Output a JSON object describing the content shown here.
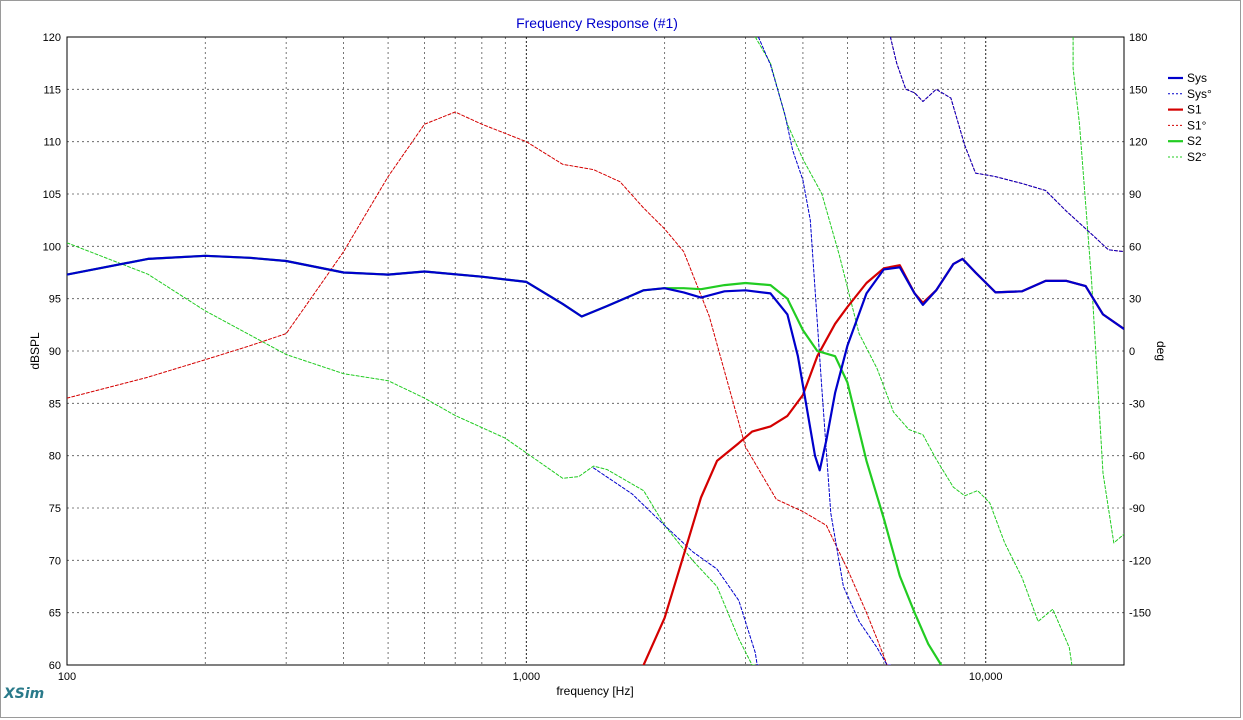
{
  "app_brand": "XSim",
  "chart_data": {
    "type": "line",
    "title": "Frequency Response (#1)",
    "xlabel": "frequency [Hz]",
    "ylabel_left": "dBSPL",
    "ylabel_right": "deg",
    "x_scale": "log",
    "xlim": [
      100,
      20000
    ],
    "ylim_left": [
      60,
      120
    ],
    "ylim_right": [
      -180,
      180
    ],
    "x_tick_labels": [
      {
        "value": 100,
        "label": "100"
      },
      {
        "value": 1000,
        "label": "1,000"
      },
      {
        "value": 10000,
        "label": "10,000"
      }
    ],
    "y_ticks_left": [
      60,
      65,
      70,
      75,
      80,
      85,
      90,
      95,
      100,
      105,
      110,
      115,
      120
    ],
    "y_ticks_right": [
      -150,
      -120,
      -90,
      -60,
      -30,
      0,
      30,
      60,
      90,
      120,
      150,
      180
    ],
    "y_tick_labels_right": [
      "-150",
      "-120",
      "-90",
      "-60",
      "-30",
      "0",
      "30",
      "60",
      "90",
      "120",
      "150",
      "180"
    ],
    "grid": true,
    "legend_position": "top-right",
    "colors": {
      "title": "#0000cc",
      "Sys": "#0000cc",
      "S1": "#d40000",
      "S2": "#22cc22",
      "grid": "#555555"
    },
    "series": [
      {
        "name": "Sys",
        "axis": "left",
        "style": "solid",
        "color": "#0000cc",
        "points": [
          [
            100,
            97.3
          ],
          [
            150,
            98.8
          ],
          [
            200,
            99.1
          ],
          [
            250,
            98.9
          ],
          [
            300,
            98.6
          ],
          [
            400,
            97.5
          ],
          [
            500,
            97.3
          ],
          [
            600,
            97.6
          ],
          [
            800,
            97.1
          ],
          [
            1000,
            96.6
          ],
          [
            1200,
            94.5
          ],
          [
            1320,
            93.3
          ],
          [
            1500,
            94.3
          ],
          [
            1800,
            95.8
          ],
          [
            2000,
            96.0
          ],
          [
            2200,
            95.6
          ],
          [
            2400,
            95.1
          ],
          [
            2700,
            95.7
          ],
          [
            3000,
            95.8
          ],
          [
            3400,
            95.5
          ],
          [
            3700,
            93.5
          ],
          [
            3900,
            89.5
          ],
          [
            4100,
            84.0
          ],
          [
            4250,
            80.0
          ],
          [
            4350,
            78.6
          ],
          [
            4500,
            81.5
          ],
          [
            4700,
            86.0
          ],
          [
            5000,
            90.5
          ],
          [
            5500,
            95.5
          ],
          [
            6000,
            97.8
          ],
          [
            6500,
            98.0
          ],
          [
            7000,
            95.5
          ],
          [
            7300,
            94.4
          ],
          [
            7800,
            95.8
          ],
          [
            8500,
            98.3
          ],
          [
            8900,
            98.8
          ],
          [
            9500,
            97.5
          ],
          [
            10500,
            95.6
          ],
          [
            12000,
            95.7
          ],
          [
            13500,
            96.7
          ],
          [
            15000,
            96.7
          ],
          [
            16500,
            96.2
          ],
          [
            18000,
            93.5
          ],
          [
            20000,
            92.1
          ]
        ]
      },
      {
        "name": "Sys°",
        "axis": "right",
        "style": "dashed",
        "color": "#0000cc",
        "points": [
          [
            1400,
            -67
          ],
          [
            1700,
            -82
          ],
          [
            2000,
            -100
          ],
          [
            2300,
            -115
          ],
          [
            2600,
            -125
          ],
          [
            2900,
            -143
          ],
          [
            3150,
            -173
          ],
          [
            3180,
            -180
          ],
          [
            3200,
            180
          ],
          [
            3400,
            164
          ],
          [
            3650,
            136
          ],
          [
            3800,
            115
          ],
          [
            4000,
            98
          ],
          [
            4150,
            75
          ],
          [
            4400,
            -22
          ],
          [
            4600,
            -93
          ],
          [
            4900,
            -135
          ],
          [
            5300,
            -155
          ],
          [
            5800,
            -170
          ],
          [
            6100,
            -180
          ],
          [
            6200,
            180
          ],
          [
            6400,
            165
          ],
          [
            6700,
            150
          ],
          [
            7000,
            148
          ],
          [
            7300,
            143
          ],
          [
            7800,
            150
          ],
          [
            8400,
            145
          ],
          [
            9000,
            118
          ],
          [
            9500,
            102
          ],
          [
            10500,
            100
          ],
          [
            12000,
            96
          ],
          [
            13500,
            92
          ],
          [
            15000,
            80
          ],
          [
            17000,
            67
          ],
          [
            18500,
            58
          ],
          [
            20000,
            57
          ]
        ]
      },
      {
        "name": "S1",
        "axis": "left",
        "style": "solid",
        "color": "#d40000",
        "points": [
          [
            1800,
            60
          ],
          [
            2000,
            64.5
          ],
          [
            2200,
            70.5
          ],
          [
            2400,
            76
          ],
          [
            2600,
            79.5
          ],
          [
            2900,
            81.2
          ],
          [
            3100,
            82.3
          ],
          [
            3400,
            82.8
          ],
          [
            3700,
            83.8
          ],
          [
            4000,
            85.8
          ],
          [
            4300,
            89.5
          ],
          [
            4700,
            92.6
          ],
          [
            5000,
            94.2
          ],
          [
            5500,
            96.5
          ],
          [
            6000,
            97.9
          ],
          [
            6500,
            98.2
          ],
          [
            7000,
            95.5
          ],
          [
            7300,
            94.6
          ],
          [
            7800,
            95.8
          ],
          [
            8500,
            98.3
          ],
          [
            8900,
            98.8
          ],
          [
            9500,
            97.5
          ],
          [
            10500,
            95.6
          ],
          [
            12000,
            95.7
          ],
          [
            13500,
            96.7
          ],
          [
            15000,
            96.7
          ],
          [
            16500,
            96.2
          ],
          [
            18000,
            93.5
          ],
          [
            20000,
            92.1
          ]
        ]
      },
      {
        "name": "S1°",
        "axis": "right",
        "style": "dashed",
        "color": "#d40000",
        "points": [
          [
            100,
            -27
          ],
          [
            150,
            -15
          ],
          [
            200,
            -5
          ],
          [
            250,
            3
          ],
          [
            300,
            10
          ],
          [
            350,
            35
          ],
          [
            400,
            57
          ],
          [
            500,
            100
          ],
          [
            600,
            130
          ],
          [
            700,
            137
          ],
          [
            800,
            130
          ],
          [
            1000,
            120
          ],
          [
            1200,
            107
          ],
          [
            1400,
            104
          ],
          [
            1600,
            97
          ],
          [
            1800,
            82
          ],
          [
            2000,
            70
          ],
          [
            2200,
            57
          ],
          [
            2500,
            20
          ],
          [
            3000,
            -55
          ],
          [
            3500,
            -85
          ],
          [
            4000,
            -92
          ],
          [
            4500,
            -100
          ],
          [
            5000,
            -125
          ],
          [
            5500,
            -150
          ],
          [
            5800,
            -165
          ],
          [
            6000,
            -175
          ],
          [
            6100,
            -180
          ],
          [
            6200,
            180
          ],
          [
            6400,
            165
          ],
          [
            6700,
            150
          ],
          [
            7000,
            148
          ],
          [
            7300,
            143
          ],
          [
            7800,
            150
          ],
          [
            8400,
            145
          ],
          [
            9000,
            118
          ],
          [
            9500,
            102
          ],
          [
            10500,
            100
          ],
          [
            12000,
            96
          ],
          [
            13500,
            92
          ],
          [
            15000,
            80
          ],
          [
            17000,
            67
          ],
          [
            18500,
            58
          ],
          [
            20000,
            57
          ]
        ]
      },
      {
        "name": "S2",
        "axis": "left",
        "style": "solid",
        "color": "#22cc22",
        "points": [
          [
            100,
            97.3
          ],
          [
            150,
            98.8
          ],
          [
            200,
            99.1
          ],
          [
            250,
            98.9
          ],
          [
            300,
            98.6
          ],
          [
            400,
            97.5
          ],
          [
            500,
            97.3
          ],
          [
            600,
            97.6
          ],
          [
            800,
            97.1
          ],
          [
            1000,
            96.6
          ],
          [
            1200,
            94.5
          ],
          [
            1320,
            93.3
          ],
          [
            1500,
            94.3
          ],
          [
            1800,
            95.8
          ],
          [
            2000,
            96.0
          ],
          [
            2200,
            96.0
          ],
          [
            2400,
            95.9
          ],
          [
            2700,
            96.3
          ],
          [
            3000,
            96.5
          ],
          [
            3400,
            96.3
          ],
          [
            3700,
            95.0
          ],
          [
            4000,
            92.0
          ],
          [
            4300,
            90.0
          ],
          [
            4700,
            89.5
          ],
          [
            5000,
            87.0
          ],
          [
            5500,
            79.5
          ],
          [
            6000,
            74.0
          ],
          [
            6500,
            68.5
          ],
          [
            7000,
            65.0
          ],
          [
            7500,
            62.0
          ],
          [
            8000,
            60.0
          ]
        ]
      },
      {
        "name": "S2°",
        "axis": "right",
        "style": "dashed",
        "color": "#22cc22",
        "points": [
          [
            100,
            62
          ],
          [
            150,
            44
          ],
          [
            200,
            23
          ],
          [
            300,
            -2
          ],
          [
            400,
            -13
          ],
          [
            500,
            -17
          ],
          [
            600,
            -27
          ],
          [
            700,
            -37
          ],
          [
            900,
            -50
          ],
          [
            1200,
            -73
          ],
          [
            1300,
            -72
          ],
          [
            1400,
            -66
          ],
          [
            1500,
            -68
          ],
          [
            1800,
            -80
          ],
          [
            2000,
            -100
          ],
          [
            2300,
            -120
          ],
          [
            2600,
            -135
          ],
          [
            2900,
            -165
          ],
          [
            3100,
            -180
          ],
          [
            3150,
            180
          ],
          [
            3400,
            165
          ],
          [
            3700,
            130
          ],
          [
            4000,
            110
          ],
          [
            4400,
            90
          ],
          [
            4800,
            55
          ],
          [
            5300,
            10
          ],
          [
            5800,
            -10
          ],
          [
            6300,
            -35
          ],
          [
            6800,
            -45
          ],
          [
            7300,
            -48
          ],
          [
            7800,
            -62
          ],
          [
            8500,
            -78
          ],
          [
            9000,
            -83
          ],
          [
            9600,
            -80
          ],
          [
            10200,
            -87
          ],
          [
            11000,
            -110
          ],
          [
            12000,
            -130
          ],
          [
            13000,
            -155
          ],
          [
            14000,
            -148
          ],
          [
            15200,
            -170
          ],
          [
            15400,
            -180
          ],
          [
            15500,
            162
          ],
          [
            16000,
            130
          ],
          [
            17000,
            40
          ],
          [
            18000,
            -70
          ],
          [
            19000,
            -110
          ],
          [
            20000,
            -105
          ]
        ]
      }
    ]
  }
}
